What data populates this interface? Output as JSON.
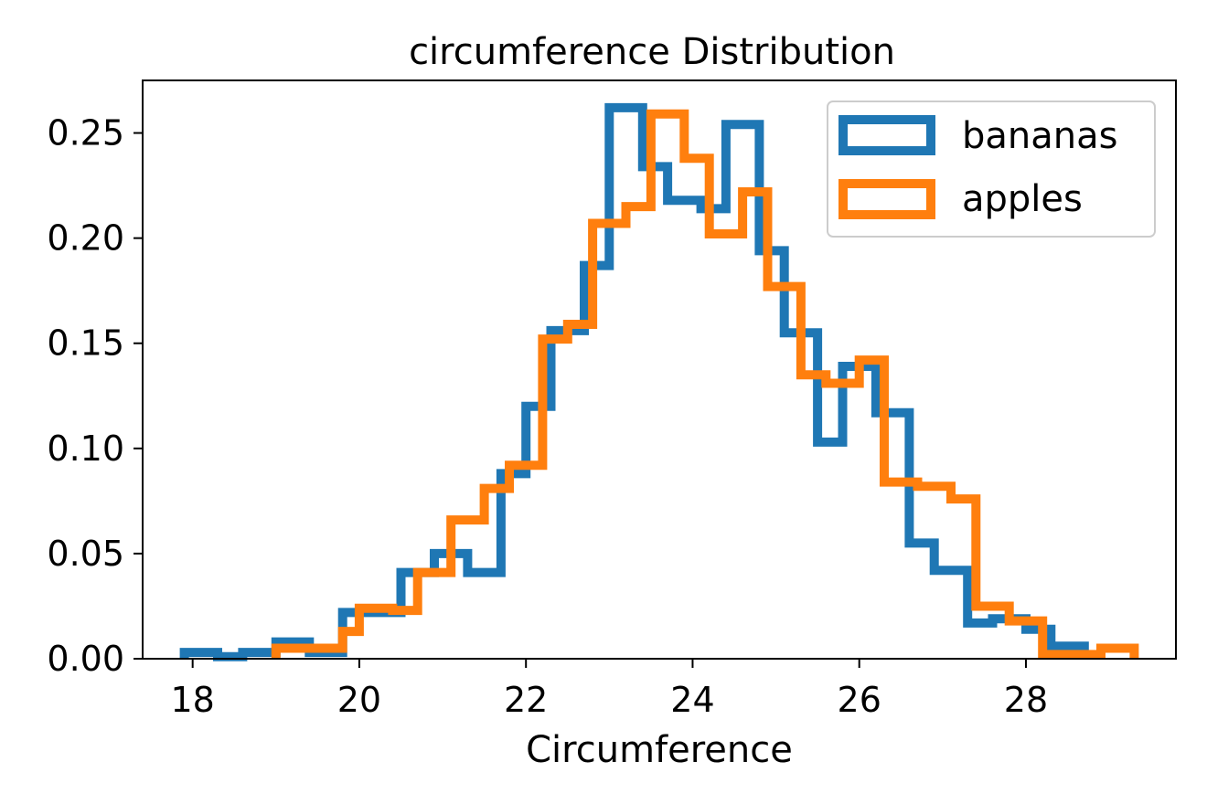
{
  "chart_data": {
    "type": "histogram-step",
    "title": "circumference Distribution",
    "xlabel": "Circumference",
    "ylabel": "",
    "xlim": [
      17.4,
      29.8
    ],
    "ylim": [
      0,
      0.275
    ],
    "x_ticks": [
      18,
      20,
      22,
      24,
      26,
      28
    ],
    "y_ticks": [
      0.0,
      0.05,
      0.1,
      0.15,
      0.2,
      0.25
    ],
    "y_tick_labels": [
      "0.00",
      "0.05",
      "0.10",
      "0.15",
      "0.20",
      "0.25"
    ],
    "grid": false,
    "legend_position": "top-right",
    "series": [
      {
        "name": "bananas",
        "color": "#1f77b4",
        "bin_edges": [
          17.9,
          18.3,
          18.6,
          19.0,
          19.4,
          19.8,
          20.2,
          20.5,
          20.9,
          21.3,
          21.7,
          22.0,
          22.3,
          22.7,
          23.0,
          23.4,
          23.7,
          24.1,
          24.4,
          24.8,
          25.1,
          25.5,
          25.8,
          26.2,
          26.6,
          26.9,
          27.3,
          27.6,
          28.0,
          28.3,
          28.7
        ],
        "values": [
          0.003,
          0.001,
          0.003,
          0.008,
          0.003,
          0.022,
          0.022,
          0.041,
          0.05,
          0.041,
          0.088,
          0.12,
          0.156,
          0.187,
          0.262,
          0.234,
          0.218,
          0.214,
          0.254,
          0.194,
          0.155,
          0.103,
          0.139,
          0.117,
          0.055,
          0.042,
          0.017,
          0.019,
          0.014,
          0.006
        ]
      },
      {
        "name": "apples",
        "color": "#ff7f0e",
        "bin_edges": [
          19.0,
          19.4,
          19.8,
          20.0,
          20.4,
          20.7,
          21.1,
          21.5,
          21.8,
          22.2,
          22.5,
          22.8,
          23.2,
          23.5,
          23.9,
          24.2,
          24.6,
          24.9,
          25.3,
          25.6,
          26.0,
          26.3,
          26.7,
          27.1,
          27.4,
          27.8,
          28.2,
          28.5,
          28.9,
          29.3
        ],
        "values": [
          0.005,
          0.005,
          0.013,
          0.024,
          0.023,
          0.041,
          0.066,
          0.081,
          0.092,
          0.152,
          0.159,
          0.207,
          0.215,
          0.259,
          0.238,
          0.202,
          0.222,
          0.177,
          0.135,
          0.131,
          0.142,
          0.084,
          0.082,
          0.076,
          0.025,
          0.018,
          0.002,
          0.002,
          0.005
        ]
      }
    ]
  }
}
